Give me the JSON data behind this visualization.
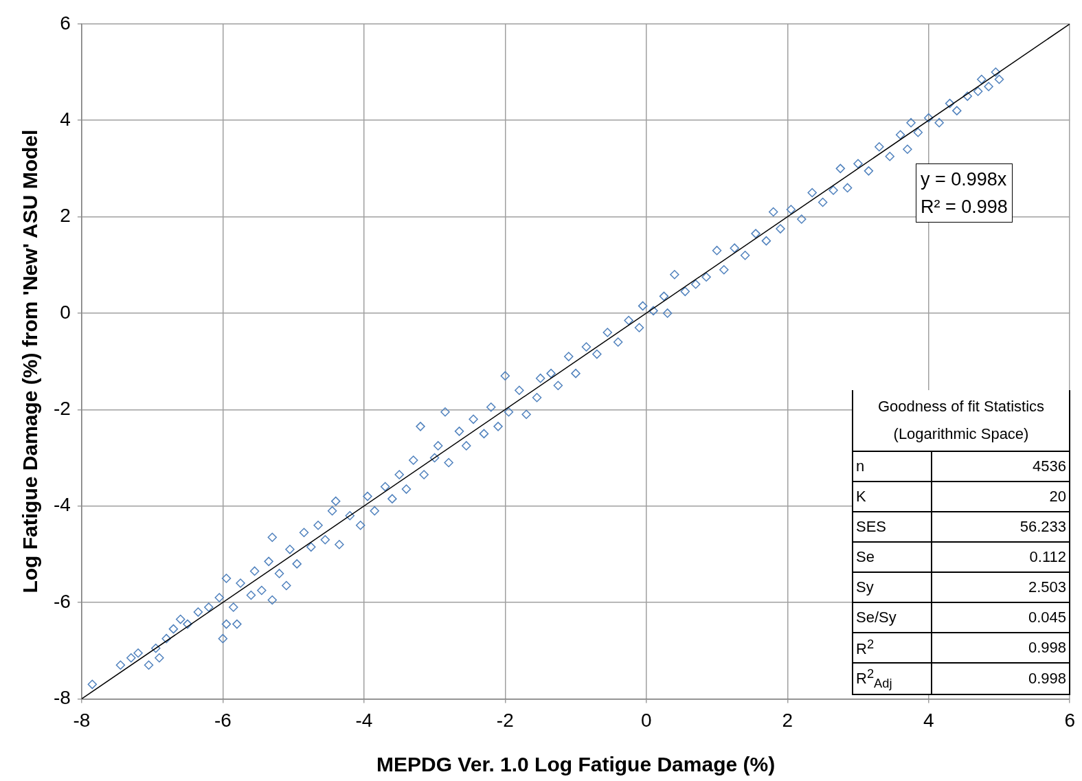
{
  "chart_data": {
    "type": "scatter",
    "xlabel": "MEPDG Ver. 1.0 Log Fatigue Damage (%)",
    "ylabel": "Log Fatigue Damage (%) from 'New' ASU Model",
    "xlim": [
      -8,
      6
    ],
    "xticks": [
      -8,
      -6,
      -4,
      -2,
      0,
      2,
      4,
      6
    ],
    "ylim": [
      -8,
      6
    ],
    "yticks": [
      -8,
      -6,
      -4,
      -2,
      0,
      2,
      4,
      6
    ],
    "grid": true,
    "legend": false,
    "series": [
      {
        "color": "#4f81bd",
        "marker": "diamond",
        "x": [
          -7.85,
          -7.45,
          -7.3,
          -7.2,
          -7.05,
          -6.95,
          -6.9,
          -6.8,
          -6.7,
          -6.6,
          -6.5,
          -6.35,
          -6.2,
          -6.05,
          -6.0,
          -5.95,
          -5.95,
          -5.85,
          -5.8,
          -5.75,
          -5.6,
          -5.55,
          -5.45,
          -5.35,
          -5.3,
          -5.3,
          -5.2,
          -5.1,
          -5.05,
          -4.95,
          -4.85,
          -4.75,
          -4.65,
          -4.55,
          -4.45,
          -4.4,
          -4.35,
          -4.2,
          -4.05,
          -3.95,
          -3.85,
          -3.7,
          -3.6,
          -3.5,
          -3.4,
          -3.3,
          -3.2,
          -3.15,
          -3.0,
          -2.95,
          -2.85,
          -2.8,
          -2.65,
          -2.55,
          -2.45,
          -2.3,
          -2.2,
          -2.1,
          -2.0,
          -1.95,
          -1.8,
          -1.7,
          -1.55,
          -1.5,
          -1.35,
          -1.25,
          -1.1,
          -1.0,
          -0.85,
          -0.7,
          -0.55,
          -0.4,
          -0.25,
          -0.1,
          -0.05,
          0.1,
          0.25,
          0.3,
          0.4,
          0.55,
          0.7,
          0.85,
          1.0,
          1.1,
          1.25,
          1.4,
          1.55,
          1.7,
          1.8,
          1.9,
          2.05,
          2.2,
          2.35,
          2.5,
          2.65,
          2.75,
          2.85,
          3.0,
          3.15,
          3.3,
          3.45,
          3.6,
          3.7,
          3.75,
          3.85,
          4.0,
          4.15,
          4.3,
          4.4,
          4.55,
          4.7,
          4.75,
          4.85,
          4.95,
          5.0
        ],
        "values": [
          -7.7,
          -7.3,
          -7.15,
          -7.05,
          -7.3,
          -6.95,
          -7.15,
          -6.75,
          -6.55,
          -6.35,
          -6.45,
          -6.2,
          -6.1,
          -5.9,
          -6.75,
          -6.45,
          -5.5,
          -6.1,
          -6.45,
          -5.6,
          -5.85,
          -5.35,
          -5.75,
          -5.15,
          -5.95,
          -4.65,
          -5.4,
          -5.65,
          -4.9,
          -5.2,
          -4.55,
          -4.85,
          -4.4,
          -4.7,
          -4.1,
          -3.9,
          -4.8,
          -4.2,
          -4.4,
          -3.8,
          -4.1,
          -3.6,
          -3.85,
          -3.35,
          -3.65,
          -3.05,
          -2.35,
          -3.35,
          -3.0,
          -2.75,
          -2.05,
          -3.1,
          -2.45,
          -2.75,
          -2.2,
          -2.5,
          -1.95,
          -2.35,
          -1.3,
          -2.05,
          -1.6,
          -2.1,
          -1.75,
          -1.35,
          -1.25,
          -1.5,
          -0.9,
          -1.25,
          -0.7,
          -0.85,
          -0.4,
          -0.6,
          -0.15,
          -0.3,
          0.15,
          0.05,
          0.35,
          0.0,
          0.8,
          0.45,
          0.6,
          0.75,
          1.3,
          0.9,
          1.35,
          1.2,
          1.65,
          1.5,
          2.1,
          1.75,
          2.15,
          1.95,
          2.5,
          2.3,
          2.55,
          3.0,
          2.6,
          3.1,
          2.95,
          3.45,
          3.25,
          3.7,
          3.4,
          3.95,
          3.75,
          4.05,
          3.95,
          4.35,
          4.2,
          4.5,
          4.6,
          4.85,
          4.7,
          5.0,
          4.85
        ]
      },
      {
        "type": "line",
        "color": "#000000",
        "x": [
          -8,
          6
        ],
        "values": [
          -8,
          6
        ]
      }
    ],
    "annotations": [
      "y = 0.998x",
      "R² = 0.998",
      "Goodness of fit Statistics",
      "(Logarithmic Space)",
      "n",
      "4536",
      "K",
      "20",
      "SES",
      "56.233",
      "Se",
      "0.112",
      "Sy",
      "2.503",
      "Se/Sy",
      "0.045",
      "R$^{2}$",
      "0.998",
      "R$^{2}$$_{Adj}$",
      "0.998"
    ]
  }
}
